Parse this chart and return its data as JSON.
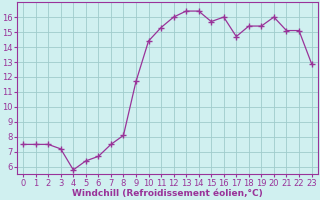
{
  "x": [
    0,
    1,
    2,
    3,
    4,
    5,
    6,
    7,
    8,
    9,
    10,
    11,
    12,
    13,
    14,
    15,
    16,
    17,
    18,
    19,
    20,
    21,
    22,
    23
  ],
  "y": [
    7.5,
    7.5,
    7.5,
    7.2,
    5.8,
    6.4,
    6.7,
    7.5,
    8.1,
    11.7,
    14.4,
    15.3,
    16.0,
    16.4,
    16.4,
    15.7,
    16.0,
    14.7,
    15.4,
    15.4,
    16.0,
    15.1,
    15.1,
    12.9
  ],
  "line_color": "#993399",
  "marker": "+",
  "marker_size": 4,
  "bg_color": "#d0f0f0",
  "grid_color": "#a0cccc",
  "xlabel": "Windchill (Refroidissement éolien,°C)",
  "xlabel_fontsize": 6.5,
  "tick_fontsize": 6.0,
  "ylim": [
    5.5,
    17.0
  ],
  "yticks": [
    6,
    7,
    8,
    9,
    10,
    11,
    12,
    13,
    14,
    15,
    16
  ],
  "xlim": [
    -0.5,
    23.5
  ],
  "xticks": [
    0,
    1,
    2,
    3,
    4,
    5,
    6,
    7,
    8,
    9,
    10,
    11,
    12,
    13,
    14,
    15,
    16,
    17,
    18,
    19,
    20,
    21,
    22,
    23
  ],
  "spine_color": "#993399",
  "text_color": "#993399"
}
